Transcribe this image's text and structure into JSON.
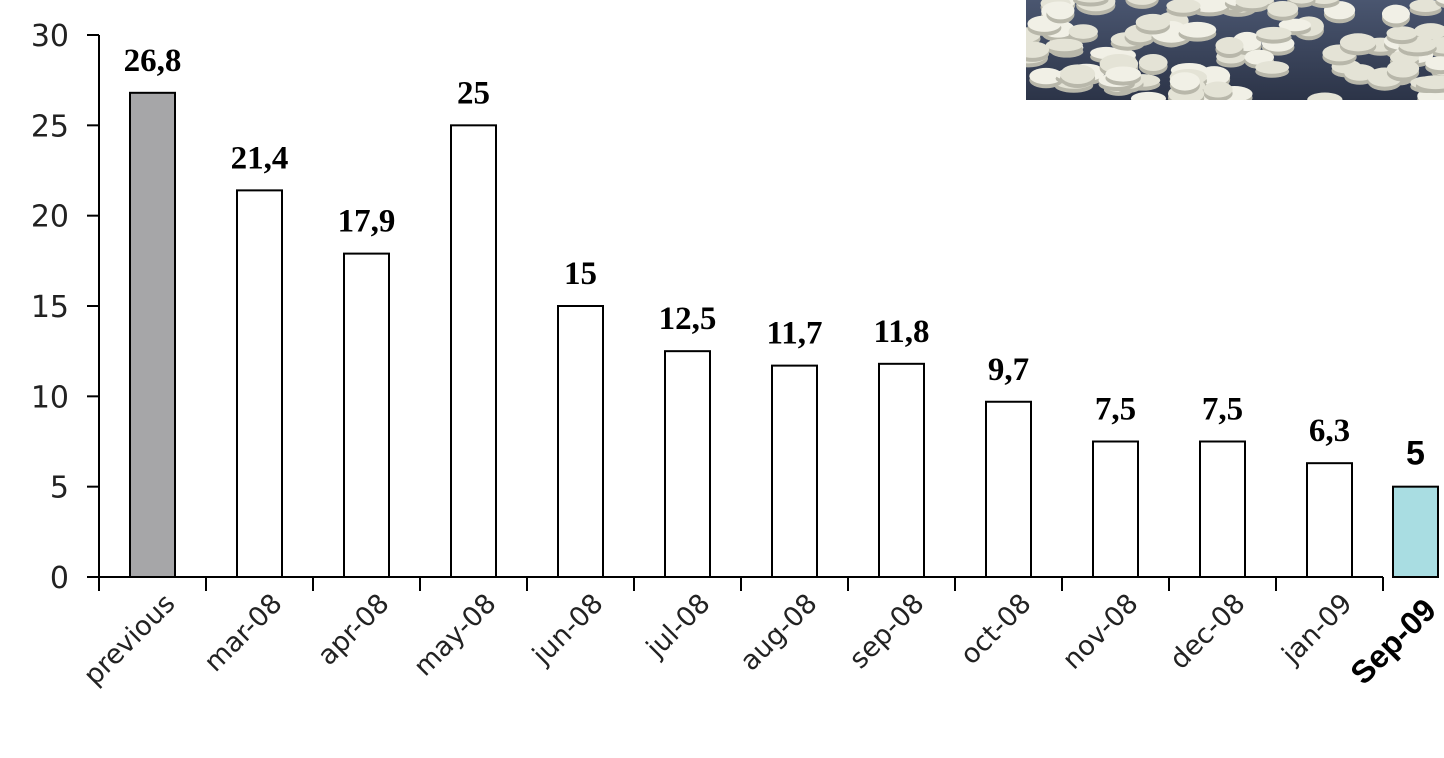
{
  "chart_data": {
    "type": "bar",
    "title": "",
    "xlabel": "",
    "ylabel": "",
    "ylim": [
      0,
      30
    ],
    "yticks": [
      0,
      5,
      10,
      15,
      20,
      25,
      30
    ],
    "grid": false,
    "categories": [
      "previous",
      "mar-08",
      "apr-08",
      "may-08",
      "jun-08",
      "jul-08",
      "aug-08",
      "sep-08",
      "oct-08",
      "nov-08",
      "dec-08",
      "jan-09",
      "Sep-09"
    ],
    "values": [
      26.8,
      21.4,
      17.9,
      25,
      15,
      12.5,
      11.7,
      11.8,
      9.7,
      7.5,
      7.5,
      6.3,
      5
    ],
    "data_labels": [
      "26,8",
      "21,4",
      "17,9",
      "25",
      "15",
      "12,5",
      "11,7",
      "11,8",
      "9,7",
      "7,5",
      "7,5",
      "6,3",
      "5"
    ],
    "bar_colors": [
      "#a6a6a8",
      "#ffffff",
      "#ffffff",
      "#ffffff",
      "#ffffff",
      "#ffffff",
      "#ffffff",
      "#ffffff",
      "#ffffff",
      "#ffffff",
      "#ffffff",
      "#ffffff",
      "#a9dde2"
    ],
    "highlight_category": "Sep-09"
  },
  "image": {
    "name": "white-pills-photo"
  }
}
